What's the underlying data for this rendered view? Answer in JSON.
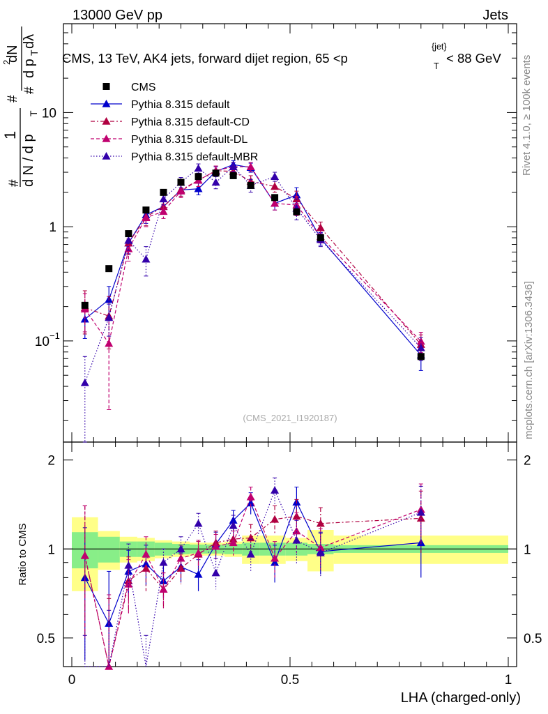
{
  "header": {
    "left": "13000 GeV pp",
    "right": "Jets"
  },
  "side_text": {
    "rivet": "Rivet 4.1.0, ≥ 100k events",
    "mcplots": "mcplots.cern.ch [arXiv:1306.3436]"
  },
  "chart_data": {
    "type": "scatter",
    "title_parts": [
      "CMS, 13 TeV, AK4 jets, forward dijet region, 65 <p",
      "T",
      "{jet}",
      "< 88 GeV"
    ],
    "watermark": "(CMS_2021_I1920187)",
    "xlabel": "LHA (charged-only)",
    "ylabel_main": {
      "frac_num": "1",
      "frac_den": "d N / d p",
      "frac_den_sub": "T",
      "second_num": "dN",
      "second_num_sup": "2",
      "second_den": "d p",
      "second_den_sub": "T",
      "second_den_tail": " dλ",
      "hash": "#"
    },
    "ylabel_ratio": "Ratio to CMS",
    "xlim": [
      0,
      1
    ],
    "ylim_main": [
      0.013,
      60
    ],
    "ylim_ratio": [
      0.4,
      2.3
    ],
    "x_ticks": [
      {
        "v": 0,
        "label": "0"
      },
      {
        "v": 0.5,
        "label": "0.5"
      },
      {
        "v": 1,
        "label": "1"
      }
    ],
    "y_ticks_main": [
      {
        "v": 0.1,
        "base": "10",
        "exp": "−1"
      },
      {
        "v": 1,
        "base": "1",
        "exp": ""
      },
      {
        "v": 10,
        "base": "10",
        "exp": ""
      }
    ],
    "y_ticks_ratio": [
      {
        "v": 0.5,
        "label": "0.5"
      },
      {
        "v": 1,
        "label": "1"
      },
      {
        "v": 2,
        "label": "2"
      }
    ],
    "data": {
      "name": "CMS",
      "color": "#000000",
      "x": [
        0.03,
        0.085,
        0.13,
        0.17,
        0.21,
        0.25,
        0.29,
        0.33,
        0.37,
        0.41,
        0.465,
        0.515,
        0.57,
        0.8
      ],
      "y": [
        0.205,
        0.43,
        0.87,
        1.4,
        2.0,
        2.45,
        2.75,
        2.95,
        2.8,
        2.3,
        1.8,
        1.35,
        0.8,
        0.073
      ]
    },
    "bins": [
      0,
      0.06,
      0.11,
      0.15,
      0.19,
      0.23,
      0.27,
      0.31,
      0.35,
      0.39,
      0.43,
      0.49,
      0.54,
      0.6,
      1.0
    ],
    "band_stat": [
      0.14,
      0.1,
      0.06,
      0.06,
      0.05,
      0.04,
      0.035,
      0.035,
      0.04,
      0.05,
      0.05,
      0.05,
      0.04,
      0.03
    ],
    "band_total": [
      0.28,
      0.15,
      0.1,
      0.09,
      0.07,
      0.06,
      0.05,
      0.05,
      0.06,
      0.11,
      0.11,
      0.09,
      0.16,
      0.11
    ],
    "series": [
      {
        "name": "Pythia 8.315 default",
        "color": "#0000cc",
        "dash": "",
        "x": [
          0.03,
          0.085,
          0.13,
          0.17,
          0.21,
          0.25,
          0.29,
          0.33,
          0.37,
          0.41,
          0.465,
          0.515,
          0.57,
          0.8
        ],
        "y": [
          0.155,
          0.23,
          0.72,
          1.27,
          1.5,
          2.1,
          2.15,
          3.05,
          3.5,
          3.3,
          1.6,
          1.9,
          0.79,
          0.075
        ],
        "err": [
          0.05,
          0.07,
          0.14,
          0.2,
          0.18,
          0.25,
          0.25,
          0.3,
          0.3,
          0.3,
          0.2,
          0.3,
          0.1,
          0.02
        ],
        "ratio": [
          0.8,
          0.56,
          0.84,
          0.89,
          0.78,
          0.87,
          0.82,
          1.04,
          1.25,
          1.43,
          0.9,
          1.44,
          0.98,
          1.05
        ],
        "rerr": [
          0.38,
          0.28,
          0.15,
          0.14,
          0.1,
          0.1,
          0.1,
          0.1,
          0.1,
          0.12,
          0.13,
          0.18,
          0.16,
          0.25
        ]
      },
      {
        "name": "Pythia 8.315 default-CD",
        "color": "#b00040",
        "dash": "6,3,2,3",
        "x": [
          0.03,
          0.085,
          0.13,
          0.17,
          0.21,
          0.25,
          0.29,
          0.33,
          0.37,
          0.41,
          0.465,
          0.515,
          0.57,
          0.8
        ],
        "y": [
          0.195,
          0.165,
          0.72,
          1.22,
          1.5,
          2.1,
          2.55,
          3.1,
          3.05,
          2.5,
          2.25,
          1.75,
          0.98,
          0.093
        ],
        "err": [
          0.08,
          0.08,
          0.15,
          0.2,
          0.2,
          0.25,
          0.3,
          0.3,
          0.3,
          0.3,
          0.25,
          0.3,
          0.12,
          0.02
        ],
        "ratio": [
          0.95,
          0.38,
          0.78,
          0.86,
          0.73,
          0.86,
          0.96,
          1.05,
          1.08,
          1.09,
          1.26,
          1.29,
          1.22,
          1.27
        ],
        "rerr": [
          0.45,
          0.3,
          0.16,
          0.14,
          0.1,
          0.1,
          0.1,
          0.1,
          0.1,
          0.12,
          0.14,
          0.18,
          0.16,
          0.3
        ]
      },
      {
        "name": "Pythia 8.315 default-DL",
        "color": "#c0006f",
        "dash": "5,3",
        "x": [
          0.03,
          0.085,
          0.13,
          0.17,
          0.21,
          0.25,
          0.29,
          0.33,
          0.37,
          0.41,
          0.465,
          0.515,
          0.57,
          0.8
        ],
        "y": [
          0.19,
          0.095,
          0.64,
          1.2,
          1.36,
          2.05,
          2.55,
          3.1,
          3.35,
          3.35,
          1.6,
          1.55,
          0.82,
          0.099
        ],
        "err": [
          0.07,
          0.07,
          0.14,
          0.2,
          0.18,
          0.25,
          0.3,
          0.3,
          0.3,
          0.3,
          0.2,
          0.3,
          0.1,
          0.02
        ],
        "ratio": [
          0.95,
          0.4,
          0.76,
          0.96,
          0.73,
          0.93,
          0.97,
          1.02,
          1.05,
          1.5,
          0.93,
          1.15,
          1.01,
          1.36
        ],
        "rerr": [
          0.45,
          0.3,
          0.16,
          0.14,
          0.1,
          0.1,
          0.1,
          0.1,
          0.1,
          0.12,
          0.13,
          0.18,
          0.16,
          0.3
        ]
      },
      {
        "name": "Pythia 8.315 default-MBR",
        "color": "#3300aa",
        "dash": "1.5,2.5",
        "x": [
          0.03,
          0.085,
          0.13,
          0.17,
          0.21,
          0.25,
          0.29,
          0.33,
          0.37,
          0.41,
          0.465,
          0.515,
          0.57,
          0.8
        ],
        "y": [
          0.043,
          0.16,
          0.76,
          0.52,
          1.75,
          2.45,
          3.25,
          2.45,
          3.35,
          2.3,
          2.75,
          1.45,
          0.77,
          0.087
        ],
        "err": [
          0.03,
          0.05,
          0.14,
          0.15,
          0.2,
          0.25,
          0.3,
          0.3,
          0.3,
          0.3,
          0.25,
          0.3,
          0.1,
          0.02
        ],
        "ratio": [
          0.21,
          0.37,
          0.88,
          0.37,
          0.9,
          1.0,
          1.22,
          0.83,
          1.2,
          0.96,
          1.58,
          1.07,
          0.97,
          1.33
        ],
        "rerr": [
          0.3,
          0.25,
          0.16,
          0.14,
          0.1,
          0.1,
          0.1,
          0.1,
          0.1,
          0.12,
          0.16,
          0.18,
          0.16,
          0.3
        ]
      }
    ]
  }
}
